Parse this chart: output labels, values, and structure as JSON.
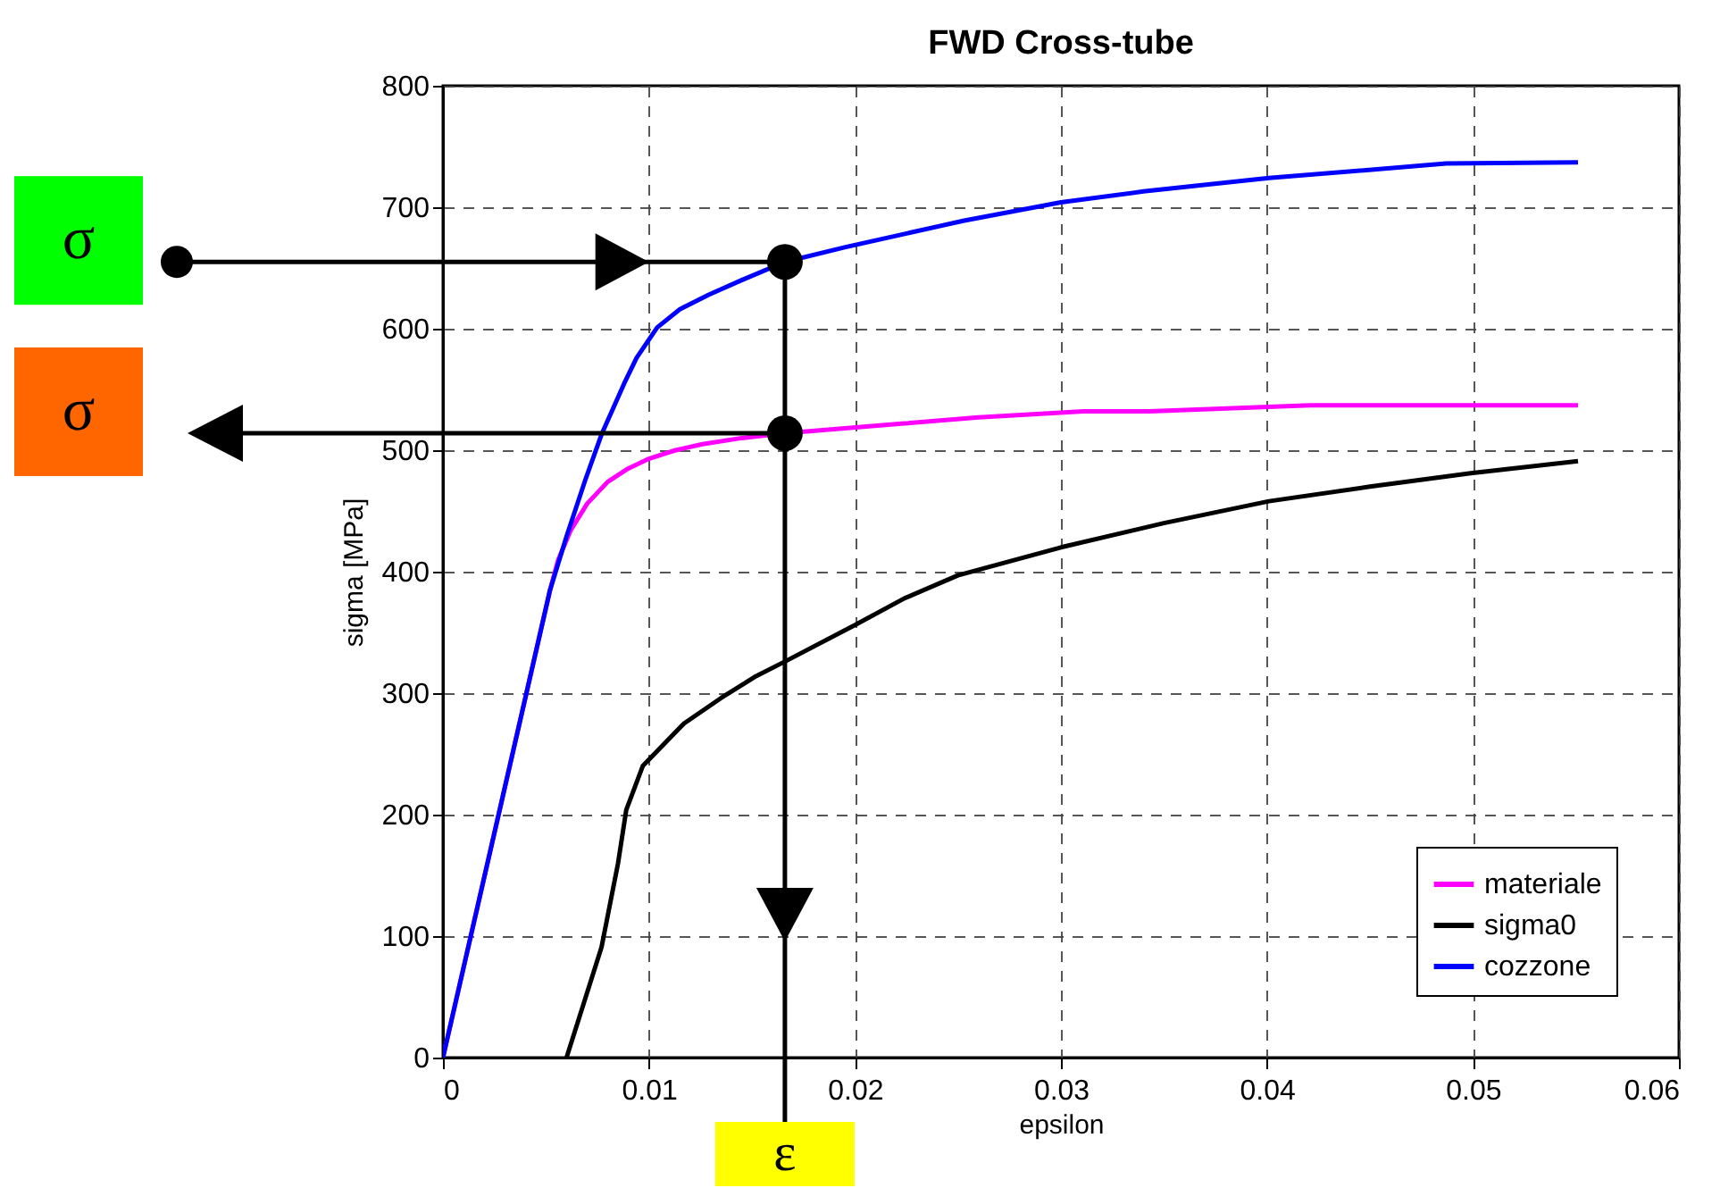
{
  "chart_data": {
    "type": "line",
    "title": "FWD Cross-tube",
    "xlabel": "epsilon",
    "ylabel": "sigma [MPa]",
    "xlim": [
      0,
      0.06
    ],
    "ylim": [
      0,
      800
    ],
    "xticks": [
      0,
      0.01,
      0.02,
      0.03,
      0.04,
      0.05,
      0.06
    ],
    "yticks": [
      0,
      100,
      200,
      300,
      400,
      500,
      600,
      700,
      800
    ],
    "grid": true,
    "legend": "bottom right",
    "line_style": "solid",
    "marker": "none",
    "series": [
      {
        "name": "materiale",
        "color": "#ff00ff",
        "x": [
          0,
          0.0052,
          0.0056,
          0.0062,
          0.007,
          0.008,
          0.009,
          0.01,
          0.0113,
          0.0126,
          0.0145,
          0.0166,
          0.0195,
          0.0224,
          0.026,
          0.0311,
          0.0343,
          0.0421,
          0.0551
        ],
        "values": [
          0,
          385,
          410,
          434,
          456,
          474,
          485,
          493,
          500,
          505,
          510,
          514,
          518,
          522,
          527,
          532,
          532,
          537,
          537
        ]
      },
      {
        "name": "sigma0",
        "color": "#000000",
        "x": [
          0.006,
          0.0077,
          0.0085,
          0.0089,
          0.0097,
          0.0117,
          0.0135,
          0.0152,
          0.0166,
          0.02,
          0.0224,
          0.025,
          0.03,
          0.035,
          0.0401,
          0.045,
          0.0499,
          0.0551
        ],
        "values": [
          0,
          91,
          160,
          204,
          240,
          275,
          296,
          314,
          326,
          356,
          378,
          397,
          420,
          440,
          458,
          470,
          481,
          491
        ]
      },
      {
        "name": "cozzone",
        "color": "#0000ff",
        "x": [
          0,
          0.0052,
          0.006,
          0.0069,
          0.0077,
          0.0088,
          0.0094,
          0.0104,
          0.0115,
          0.0129,
          0.0145,
          0.0166,
          0.0195,
          0.0253,
          0.03,
          0.034,
          0.0401,
          0.0487,
          0.0551
        ],
        "values": [
          0,
          385,
          429,
          475,
          513,
          555,
          576,
          601,
          616,
          628,
          640,
          655,
          667,
          689,
          704,
          713,
          724,
          736,
          737
        ]
      }
    ],
    "ref_lines": [
      {
        "axis": "y",
        "value": 655,
        "label": "σ"
      },
      {
        "axis": "y",
        "value": 514,
        "label": "σ"
      },
      {
        "axis": "x",
        "value": 0.0166,
        "label": "ε"
      }
    ]
  }
}
